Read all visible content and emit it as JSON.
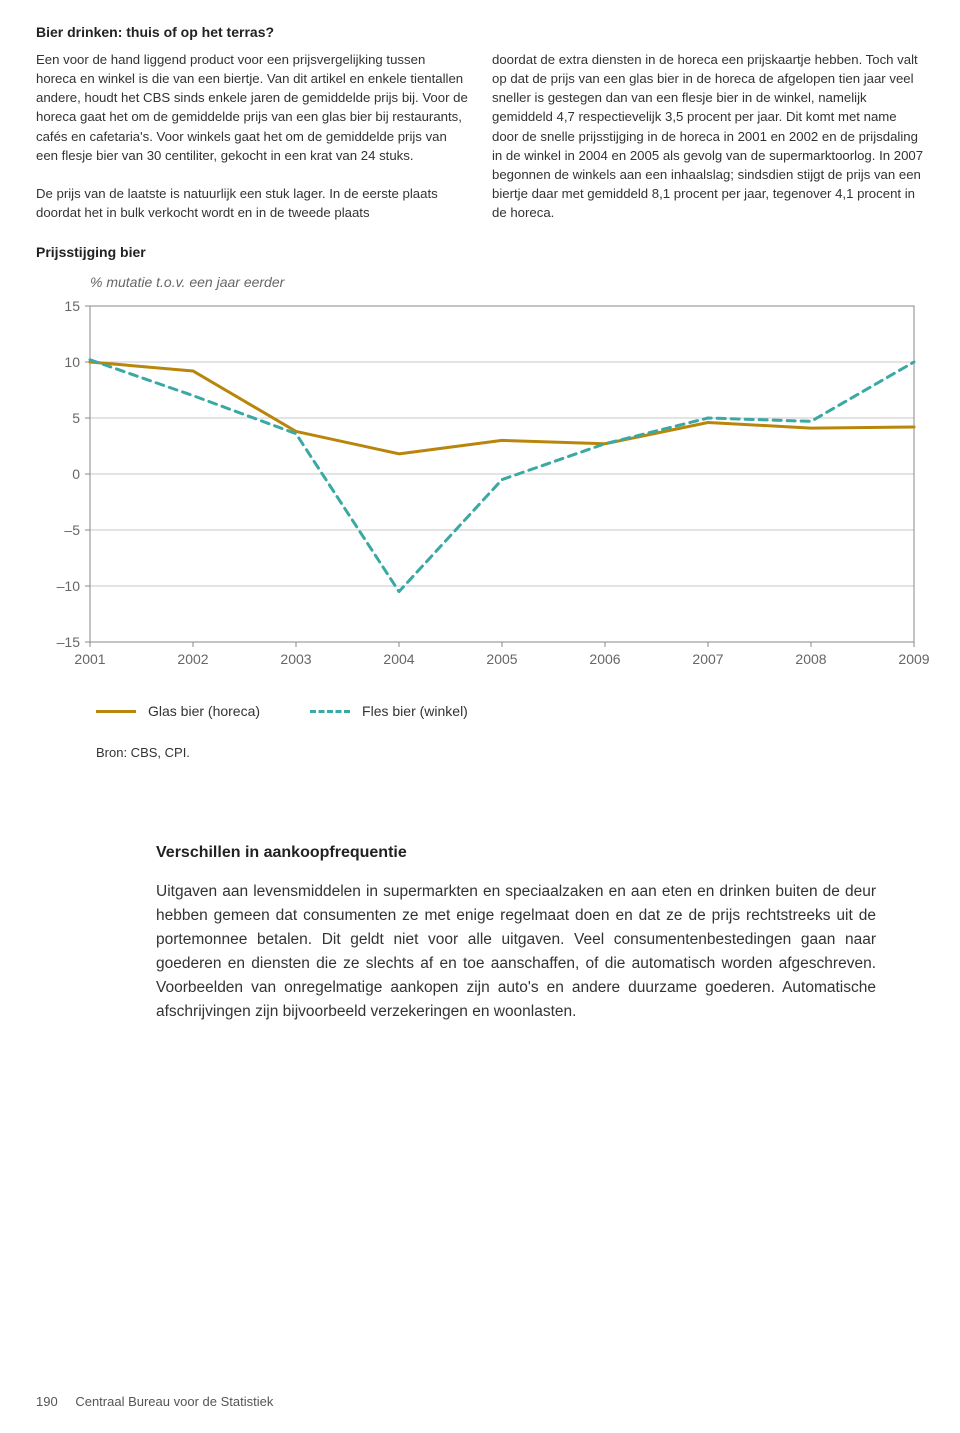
{
  "header_title": "Bier drinken: thuis of op het terras?",
  "left_paragraph": "Een voor de hand liggend product voor een prijsvergelijking tussen horeca en winkel is die van een biertje. Van dit artikel en enkele tientallen andere, houdt het CBS sinds enkele jaren de gemiddelde prijs bij. Voor de horeca gaat het om de gemiddelde prijs van een glas bier bij restaurants, cafés en cafetaria's. Voor winkels gaat het om de gemiddelde prijs van een flesje bier van 30 centiliter, gekocht in een krat van 24 stuks.\n\nDe prijs van de laatste is natuurlijk een stuk lager. In de eerste plaats doordat het in bulk verkocht wordt en in de tweede plaats",
  "right_paragraph": "doordat de extra diensten in de horeca een prijskaartje hebben. Toch valt op dat de prijs van een glas bier in de horeca de afgelopen tien jaar veel sneller is gestegen dan van een flesje bier in de winkel, namelijk gemiddeld 4,7 respectievelijk 3,5 procent per jaar. Dit komt met name door de snelle prijsstijging in de horeca in 2001 en 2002 en de prijsdaling in de winkel in 2004 en 2005 als gevolg van de supermarktoorlog. In 2007 begonnen de winkels aan een inhaalslag; sindsdien stijgt de prijs van een biertje daar met gemiddeld 8,1 procent per jaar, tegenover 4,1 procent in de horeca.",
  "chart_section_title": "Prijsstijging bier",
  "chart_subtitle": "% mutatie t.o.v. een jaar eerder",
  "chart": {
    "type": "line",
    "background_color": "#ffffff",
    "axis_color": "#888888",
    "grid_color": "#c9c9c9",
    "tick_label_color": "#666666",
    "tick_fontsize": 14,
    "xlim": [
      2001,
      2009
    ],
    "ylim": [
      -15,
      15
    ],
    "y_ticks": [
      -15,
      -10,
      -5,
      0,
      5,
      10,
      15
    ],
    "x_ticks": [
      2001,
      2002,
      2003,
      2004,
      2005,
      2006,
      2007,
      2008,
      2009
    ],
    "series": [
      {
        "name": "Glas bier (horeca)",
        "color": "#b8860b",
        "dash": "solid",
        "width": 3,
        "x": [
          2001,
          2002,
          2003,
          2004,
          2005,
          2006,
          2007,
          2008,
          2009
        ],
        "y": [
          10.0,
          9.2,
          3.8,
          1.8,
          3.0,
          2.7,
          4.6,
          4.1,
          4.2
        ]
      },
      {
        "name": "Fles bier (winkel)",
        "color": "#3aa9a4",
        "dash": "8 6",
        "width": 3,
        "x": [
          2001,
          2002,
          2003,
          2004,
          2005,
          2006,
          2007,
          2008,
          2009
        ],
        "y": [
          10.2,
          7.0,
          3.6,
          -10.5,
          -0.5,
          2.7,
          5.0,
          4.7,
          10.0
        ]
      }
    ]
  },
  "legend": {
    "items": [
      {
        "label": "Glas bier (horeca)",
        "color": "#b8860b",
        "dash": "solid"
      },
      {
        "label": "Fles bier (winkel)",
        "color": "#3aa9a4",
        "dash": "dashed"
      }
    ]
  },
  "source_label": "Bron: CBS, CPI.",
  "body_heading": "Verschillen in aankoopfrequentie",
  "body_text": "Uitgaven aan levensmiddelen in supermarkten en speciaalzaken en aan eten en drinken buiten de deur hebben gemeen dat consumenten ze met enige regelmaat doen en dat ze de prijs rechtstreeks uit de portemonnee betalen. Dit geldt niet voor alle uitgaven. Veel consumentenbestedingen gaan naar goederen en diensten die ze slechts af en toe aanschaffen, of die automatisch worden afgeschreven. Voorbeelden van onregelmatige aankopen zijn auto's en andere duurzame goederen. Automatische afschrijvingen zijn bijvoorbeeld verzekeringen en woonlasten.",
  "footer": {
    "page": "190",
    "publisher": "Centraal Bureau voor de Statistiek"
  }
}
